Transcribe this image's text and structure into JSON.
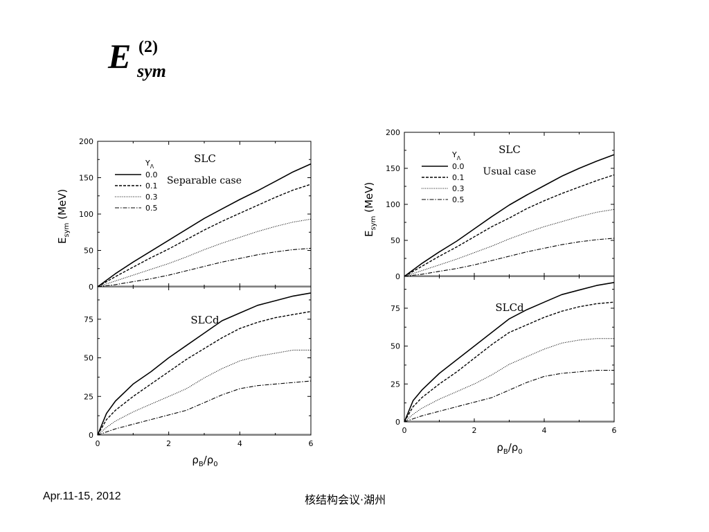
{
  "slide": {
    "formula": {
      "main": "E",
      "superscript": "(2)",
      "subscript": "sym"
    },
    "footer_left": "Apr.11-15, 2012",
    "footer_center": "核结构会议·湖州"
  },
  "chart_data": [
    {
      "type": "line",
      "figure": "left",
      "panel": "top",
      "label": "SLC",
      "case": "Separable case",
      "legend_title": "YΛ",
      "xlabel": "ρB/ρ0",
      "ylabel": "Esym (MeV)",
      "xlim": [
        0,
        6
      ],
      "ylim": [
        0,
        200
      ],
      "yticks": [
        0,
        50,
        100,
        150,
        200
      ],
      "xticks": [
        0,
        2,
        4,
        6
      ],
      "x": [
        0,
        0.5,
        1,
        1.5,
        2,
        2.5,
        3,
        3.5,
        4,
        4.5,
        5,
        5.5,
        6
      ],
      "series": [
        {
          "name": "0.0",
          "style": "solid",
          "values": [
            0,
            18,
            34,
            49,
            64,
            79,
            94,
            107,
            120,
            132,
            145,
            158,
            169
          ]
        },
        {
          "name": "0.1",
          "style": "dashed",
          "values": [
            0,
            14,
            27,
            40,
            52,
            65,
            78,
            90,
            101,
            112,
            123,
            133,
            141
          ]
        },
        {
          "name": "0.3",
          "style": "dotted",
          "values": [
            0,
            8,
            16,
            24,
            32,
            41,
            51,
            60,
            68,
            76,
            83,
            89,
            93
          ]
        },
        {
          "name": "0.5",
          "style": "dashdot",
          "values": [
            0,
            3,
            7,
            11,
            16,
            22,
            28,
            34,
            39,
            44,
            48,
            51,
            53
          ]
        }
      ]
    },
    {
      "type": "line",
      "figure": "left",
      "panel": "bottom",
      "label": "SLCd",
      "xlim": [
        0,
        6
      ],
      "ylim": [
        0,
        95
      ],
      "yticks": [
        0,
        25,
        50,
        75
      ],
      "xticks": [
        0,
        2,
        4,
        6
      ],
      "x": [
        0,
        0.25,
        0.5,
        1,
        1.5,
        2,
        2.5,
        3,
        3.5,
        4,
        4.5,
        5,
        5.5,
        6
      ],
      "series": [
        {
          "name": "0.0",
          "style": "solid",
          "values": [
            0,
            14,
            22,
            33,
            41,
            50,
            58,
            66,
            74,
            79,
            84,
            87,
            90,
            92
          ]
        },
        {
          "name": "0.1",
          "style": "dashed",
          "values": [
            0,
            10,
            16,
            25,
            33,
            41,
            49,
            56,
            63,
            69,
            73,
            76,
            78,
            80
          ]
        },
        {
          "name": "0.3",
          "style": "dotted",
          "values": [
            0,
            5,
            9,
            15,
            20,
            25,
            30,
            37,
            43,
            48,
            51,
            53,
            55,
            55
          ]
        },
        {
          "name": "0.5",
          "style": "dashdot",
          "values": [
            0,
            2,
            4,
            7,
            10,
            13,
            16,
            21,
            26,
            30,
            32,
            33,
            34,
            35
          ]
        }
      ]
    },
    {
      "type": "line",
      "figure": "right",
      "panel": "top",
      "label": "SLC",
      "case": "Usual case",
      "legend_title": "YΛ",
      "xlabel": "ρB/ρ0",
      "ylabel": "Esym (MeV)",
      "xlim": [
        0,
        6
      ],
      "ylim": [
        0,
        200
      ],
      "yticks": [
        0,
        50,
        100,
        150,
        200
      ],
      "xticks": [
        0,
        2,
        4,
        6
      ],
      "x": [
        0,
        0.5,
        1,
        1.5,
        2,
        2.5,
        3,
        3.5,
        4,
        4.5,
        5,
        5.5,
        6
      ],
      "series": [
        {
          "name": "0.0",
          "style": "solid",
          "values": [
            0,
            18,
            34,
            49,
            66,
            83,
            99,
            113,
            126,
            139,
            150,
            160,
            169
          ]
        },
        {
          "name": "0.1",
          "style": "dashed",
          "values": [
            0,
            14,
            28,
            41,
            55,
            69,
            81,
            94,
            105,
            115,
            124,
            133,
            141
          ]
        },
        {
          "name": "0.3",
          "style": "dotted",
          "values": [
            0,
            8,
            16,
            24,
            33,
            42,
            52,
            61,
            69,
            76,
            83,
            89,
            93
          ]
        },
        {
          "name": "0.5",
          "style": "dashdot",
          "values": [
            0,
            3,
            7,
            11,
            16,
            22,
            28,
            34,
            39,
            44,
            48,
            51,
            53
          ]
        }
      ]
    },
    {
      "type": "line",
      "figure": "right",
      "panel": "bottom",
      "label": "SLCd",
      "xlabel": "ρB/ρ0",
      "xlim": [
        0,
        6
      ],
      "ylim": [
        0,
        95
      ],
      "yticks": [
        0,
        25,
        50,
        75
      ],
      "xticks": [
        0,
        2,
        4,
        6
      ],
      "x": [
        0,
        0.25,
        0.5,
        1,
        1.5,
        2,
        2.5,
        3,
        3.5,
        4,
        4.5,
        5,
        5.5,
        6
      ],
      "series": [
        {
          "name": "0.0",
          "style": "solid",
          "values": [
            0,
            14,
            21,
            32,
            41,
            50,
            59,
            68,
            74,
            79,
            84,
            87,
            90,
            92
          ]
        },
        {
          "name": "0.1",
          "style": "dashed",
          "values": [
            0,
            10,
            16,
            25,
            33,
            42,
            51,
            59,
            64,
            69,
            73,
            76,
            78,
            79
          ]
        },
        {
          "name": "0.3",
          "style": "dotted",
          "values": [
            0,
            5,
            9,
            15,
            20,
            25,
            31,
            38,
            43,
            48,
            52,
            54,
            55,
            55
          ]
        },
        {
          "name": "0.5",
          "style": "dashdot",
          "values": [
            0,
            2,
            4,
            7,
            10,
            13,
            16,
            21,
            26,
            30,
            32,
            33,
            34,
            34
          ]
        }
      ]
    }
  ]
}
